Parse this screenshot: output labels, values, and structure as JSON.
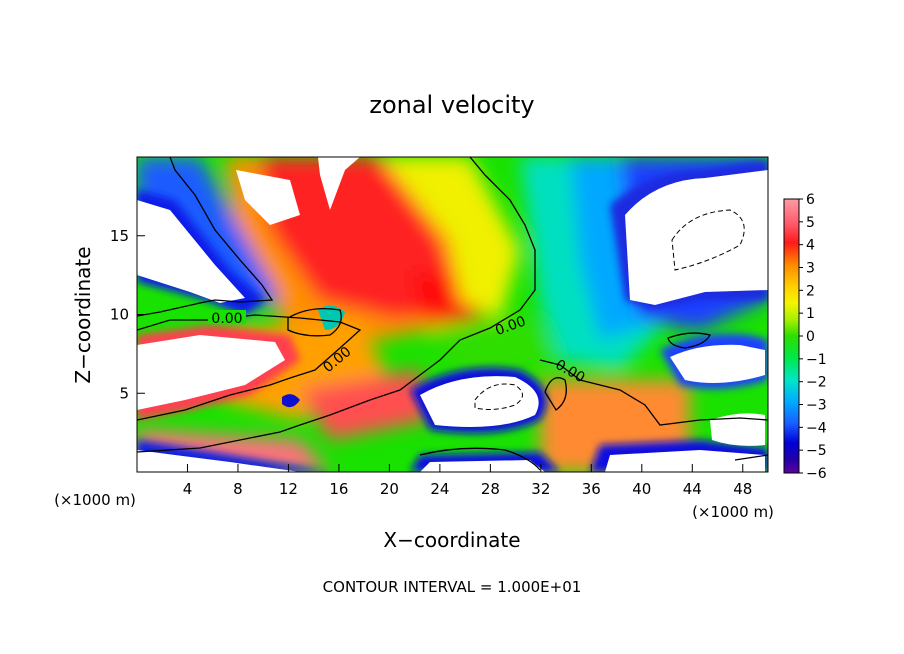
{
  "chart_data": {
    "type": "heatmap",
    "title": "zonal velocity",
    "xlabel": "X−coordinate",
    "ylabel": "Z−coordinate",
    "x_unit_left": "(×1000 m)",
    "x_unit_right": "(×1000 m)",
    "xlim": [
      0,
      50
    ],
    "ylim": [
      0,
      20
    ],
    "x_ticks": [
      4,
      8,
      12,
      16,
      20,
      24,
      28,
      32,
      36,
      40,
      44,
      48
    ],
    "y_ticks": [
      5,
      10,
      15
    ],
    "x_tick_labels": [
      "4",
      "8",
      "12",
      "16",
      "20",
      "24",
      "28",
      "32",
      "36",
      "40",
      "44",
      "48"
    ],
    "y_tick_labels": [
      "5",
      "10",
      "15"
    ],
    "colorbar": {
      "ticks": [
        6,
        5,
        4,
        3,
        2,
        1,
        0,
        -1,
        -2,
        -3,
        -4,
        -5,
        -6
      ],
      "tick_labels": [
        "6",
        "5",
        "4",
        "3",
        "2",
        "1",
        "0",
        "−1",
        "−2",
        "−3",
        "−4",
        "−5",
        "−6"
      ],
      "range": [
        -6,
        6
      ],
      "colors_top_to_bottom": [
        "#ff9aa6",
        "#ff6a78",
        "#ff2a2a",
        "#ff8a00",
        "#ffd000",
        "#f5f500",
        "#a8ef00",
        "#2ede00",
        "#00e84a",
        "#00e6c8",
        "#00aaff",
        "#1a5cff",
        "#0000d8",
        "#2000a8",
        "#6000a0"
      ]
    },
    "contour_labels": [
      "0.00",
      "0.00",
      "0.00",
      "0.00",
      "0.00"
    ],
    "footer": "CONTOUR INTERVAL = 1.000E+01"
  }
}
